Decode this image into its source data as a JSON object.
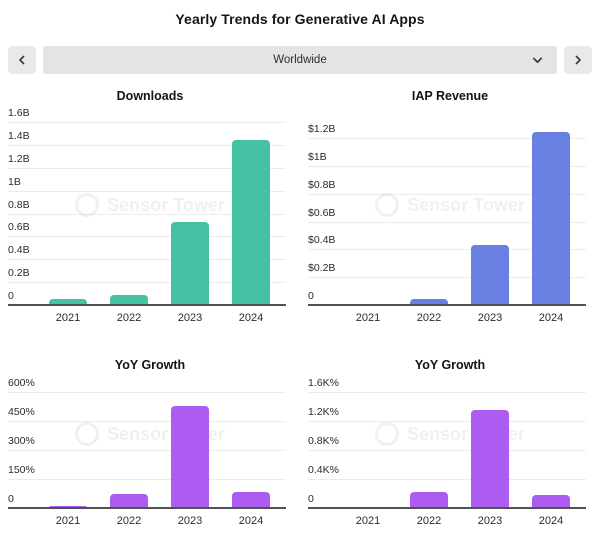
{
  "header": {
    "title": "Yearly Trends for Generative AI Apps",
    "selector": {
      "value": "Worldwide",
      "prev_icon": "chevron-left",
      "next_icon": "chevron-right",
      "dropdown_icon": "chevron-down"
    }
  },
  "watermark_text": "Sensor Tower",
  "colors": {
    "downloads_bar": "#45c2a5",
    "revenue_bar": "#6880e2",
    "growth_bar": "#ad5cf2",
    "gridline": "#ececec",
    "axis": "#515155",
    "selector_bg": "#e4e4e4",
    "nav_button_bg": "#e9e9e9"
  },
  "chart_data": [
    {
      "id": "downloads",
      "type": "bar",
      "title": "Downloads",
      "categories": [
        "2021",
        "2022",
        "2023",
        "2024"
      ],
      "values": [
        0.05,
        0.09,
        0.73,
        1.44
      ],
      "value_unit": "billions of downloads",
      "ylim": [
        0,
        1.6
      ],
      "grid": true,
      "legend": false,
      "bar_color": "#45c2a5",
      "yticks": [
        {
          "label": "0",
          "value": 0
        },
        {
          "label": "0.2B",
          "value": 0.2
        },
        {
          "label": "0.4B",
          "value": 0.4
        },
        {
          "label": "0.6B",
          "value": 0.6
        },
        {
          "label": "0.8B",
          "value": 0.8
        },
        {
          "label": "1B",
          "value": 1
        },
        {
          "label": "1.2B",
          "value": 1.2
        },
        {
          "label": "1.4B",
          "value": 1.4
        },
        {
          "label": "1.6B",
          "value": 1.6
        }
      ]
    },
    {
      "id": "revenue",
      "type": "bar",
      "title": "IAP Revenue",
      "categories": [
        "2021",
        "2022",
        "2023",
        "2024"
      ],
      "values": [
        0.01,
        0.04,
        0.43,
        1.24
      ],
      "value_unit": "billions USD",
      "ylim": [
        0,
        1.2
      ],
      "grid": true,
      "legend": false,
      "bar_color": "#6880e2",
      "yticks": [
        {
          "label": "0",
          "value": 0
        },
        {
          "label": "$0.2B",
          "value": 0.2
        },
        {
          "label": "$0.4B",
          "value": 0.4
        },
        {
          "label": "$0.6B",
          "value": 0.6
        },
        {
          "label": "$0.8B",
          "value": 0.8
        },
        {
          "label": "$1B",
          "value": 1
        },
        {
          "label": "$1.2B",
          "value": 1.2
        }
      ]
    },
    {
      "id": "yoy_downloads",
      "type": "bar",
      "title": "YoY Growth",
      "categories": [
        "2021",
        "2022",
        "2023",
        "2024"
      ],
      "values": [
        8,
        72,
        530,
        85
      ],
      "value_unit": "percent",
      "ylim": [
        0,
        600
      ],
      "grid": true,
      "legend": false,
      "bar_color": "#ad5cf2",
      "yticks": [
        {
          "label": "0",
          "value": 0
        },
        {
          "label": "150%",
          "value": 150
        },
        {
          "label": "300%",
          "value": 300
        },
        {
          "label": "450%",
          "value": 450
        },
        {
          "label": "600%",
          "value": 600
        }
      ]
    },
    {
      "id": "yoy_revenue",
      "type": "bar",
      "title": "YoY Growth",
      "categories": [
        "2021",
        "2022",
        "2023",
        "2024"
      ],
      "values": [
        20,
        220,
        1350,
        180
      ],
      "value_unit": "percent",
      "ylim": [
        0,
        1600
      ],
      "grid": true,
      "legend": false,
      "bar_color": "#ad5cf2",
      "yticks": [
        {
          "label": "0",
          "value": 0
        },
        {
          "label": "0.4K%",
          "value": 400
        },
        {
          "label": "0.8K%",
          "value": 800
        },
        {
          "label": "1.2K%",
          "value": 1200
        },
        {
          "label": "1.6K%",
          "value": 1600
        }
      ]
    }
  ]
}
